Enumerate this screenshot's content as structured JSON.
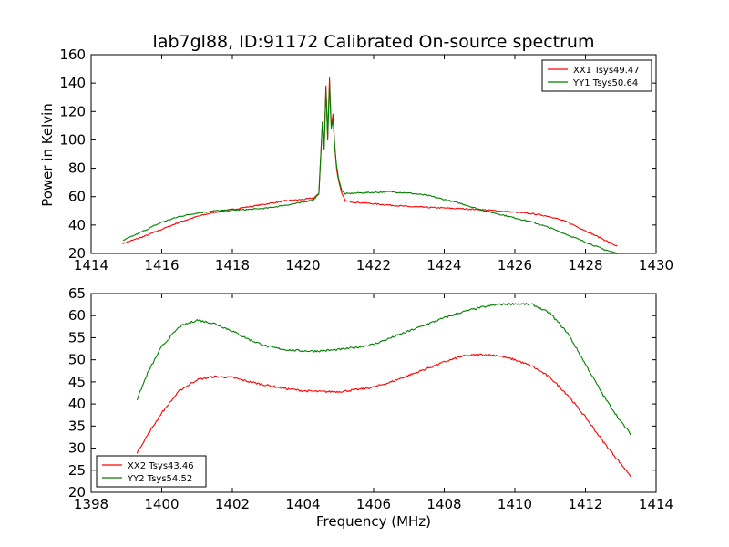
{
  "title": "lab7gl88, ID:91172 Calibrated On-source spectrum",
  "colors": {
    "red": "#ff0000",
    "green": "#008000"
  },
  "chart_data": [
    {
      "type": "line",
      "ylabel": "Power in Kelvin",
      "xlabel": "",
      "xlim": [
        1414,
        1430
      ],
      "ylim": [
        20,
        160
      ],
      "xticks": [
        1414,
        1416,
        1418,
        1420,
        1422,
        1424,
        1426,
        1428,
        1430
      ],
      "yticks": [
        20,
        40,
        60,
        80,
        100,
        120,
        140,
        160
      ],
      "legend_position": "top-right",
      "series": [
        {
          "name": "XX1 Tsys49.47",
          "color": "#ff0000",
          "x": [
            1414.9,
            1415.5,
            1416.0,
            1416.5,
            1417.0,
            1417.5,
            1418.0,
            1418.5,
            1419.0,
            1419.5,
            1420.0,
            1420.3,
            1420.45,
            1420.55,
            1420.6,
            1420.65,
            1420.7,
            1420.75,
            1420.8,
            1420.85,
            1420.9,
            1420.95,
            1421.0,
            1421.1,
            1421.2,
            1421.5,
            1422.0,
            1422.5,
            1423.0,
            1423.5,
            1424.0,
            1424.5,
            1425.0,
            1425.5,
            1426.0,
            1426.5,
            1427.0,
            1427.5,
            1428.0,
            1428.5,
            1428.9
          ],
          "y": [
            27,
            32,
            37,
            42,
            46,
            49,
            51,
            53,
            55,
            57,
            58,
            59,
            62,
            113,
            95,
            138,
            100,
            144,
            110,
            118,
            95,
            80,
            72,
            62,
            57,
            56,
            55,
            54,
            53,
            52.5,
            52,
            51.5,
            51,
            50,
            49,
            48,
            46,
            42,
            36,
            30,
            25
          ]
        },
        {
          "name": "YY1 Tsys50.64",
          "color": "#008000",
          "x": [
            1414.9,
            1415.5,
            1416.0,
            1416.5,
            1417.0,
            1417.5,
            1418.0,
            1418.5,
            1419.0,
            1419.5,
            1420.0,
            1420.3,
            1420.45,
            1420.55,
            1420.6,
            1420.65,
            1420.7,
            1420.75,
            1420.8,
            1420.85,
            1420.9,
            1420.95,
            1421.0,
            1421.1,
            1421.2,
            1421.5,
            1422.0,
            1422.5,
            1423.0,
            1423.5,
            1424.0,
            1424.5,
            1425.0,
            1425.5,
            1426.0,
            1426.5,
            1427.0,
            1427.5,
            1428.0,
            1428.5,
            1428.9
          ],
          "y": [
            29,
            36,
            42,
            46,
            48.5,
            50,
            50.5,
            51,
            52,
            54,
            56,
            58,
            62,
            112,
            93,
            135,
            102,
            140,
            108,
            114,
            96,
            82,
            74,
            64,
            62,
            62.5,
            63,
            63.5,
            62.5,
            61,
            58,
            55,
            51,
            48,
            45,
            42,
            38,
            33,
            28,
            23,
            20
          ]
        }
      ]
    },
    {
      "type": "line",
      "ylabel": "",
      "xlabel": "Frequency (MHz)",
      "xlim": [
        1398,
        1414
      ],
      "ylim": [
        20,
        65
      ],
      "xticks": [
        1398,
        1400,
        1402,
        1404,
        1406,
        1408,
        1410,
        1412,
        1414
      ],
      "yticks": [
        20,
        25,
        30,
        35,
        40,
        45,
        50,
        55,
        60,
        65
      ],
      "legend_position": "lower-left",
      "series": [
        {
          "name": "XX2 Tsys43.46",
          "color": "#ff0000",
          "x": [
            1399.3,
            1399.6,
            1400.0,
            1400.5,
            1401.0,
            1401.5,
            1402.0,
            1402.5,
            1403.0,
            1403.5,
            1404.0,
            1404.5,
            1405.0,
            1405.5,
            1406.0,
            1406.5,
            1407.0,
            1407.5,
            1408.0,
            1408.5,
            1409.0,
            1409.5,
            1410.0,
            1410.5,
            1411.0,
            1411.5,
            1412.0,
            1412.5,
            1413.0,
            1413.3
          ],
          "y": [
            29,
            33,
            38,
            43,
            45.5,
            46.2,
            46,
            45,
            44.2,
            43.5,
            43,
            42.8,
            42.8,
            43.2,
            43.8,
            45,
            46.5,
            48,
            49.5,
            50.8,
            51.2,
            51,
            50,
            48.5,
            46,
            42,
            37,
            31.5,
            26.5,
            23.5
          ]
        },
        {
          "name": "YY2 Tsys54.52",
          "color": "#008000",
          "x": [
            1399.3,
            1399.6,
            1400.0,
            1400.5,
            1401.0,
            1401.5,
            1402.0,
            1402.5,
            1403.0,
            1403.5,
            1404.0,
            1404.5,
            1405.0,
            1405.5,
            1406.0,
            1406.5,
            1407.0,
            1407.5,
            1408.0,
            1408.5,
            1409.0,
            1409.5,
            1410.0,
            1410.5,
            1411.0,
            1411.5,
            1412.0,
            1412.5,
            1413.0,
            1413.3
          ],
          "y": [
            41,
            47,
            53,
            57.5,
            59,
            58.2,
            56.5,
            54.5,
            53,
            52.3,
            52,
            52,
            52.3,
            52.8,
            53.5,
            55,
            56.5,
            58,
            59.5,
            60.8,
            61.8,
            62.5,
            62.7,
            62.5,
            60.5,
            56,
            49,
            42,
            36,
            33
          ]
        }
      ]
    }
  ]
}
